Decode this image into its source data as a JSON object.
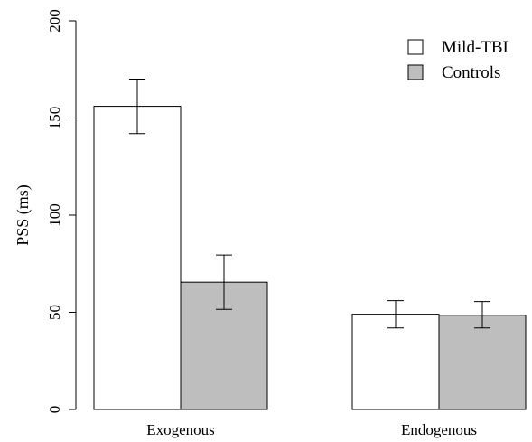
{
  "chart_data": {
    "type": "bar",
    "ylabel": "PSS (ms)",
    "xlabel": "",
    "ylim": [
      0,
      200
    ],
    "yticks": [
      0,
      50,
      100,
      150,
      200
    ],
    "categories": [
      "Exogenous",
      "Endogenous"
    ],
    "series": [
      {
        "name": "Mild-TBI",
        "color": "#ffffff",
        "values": [
          156,
          49
        ],
        "error_low": [
          142,
          42
        ],
        "error_high": [
          170,
          56
        ]
      },
      {
        "name": "Controls",
        "color": "#bebebe",
        "values": [
          65.5,
          48.5
        ],
        "error_low": [
          51.5,
          42
        ],
        "error_high": [
          79.5,
          55.5
        ]
      }
    ],
    "legend_position": "top-right",
    "grid": false
  }
}
